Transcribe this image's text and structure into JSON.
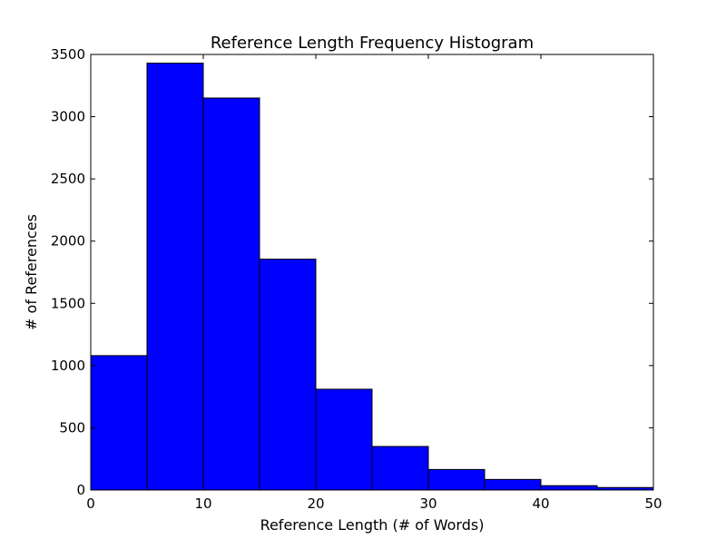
{
  "chart_data": {
    "type": "bar",
    "title": "Reference Length Frequency Histogram",
    "xlabel": "Reference Length (# of Words)",
    "ylabel": "# of References",
    "xlim": [
      0,
      50
    ],
    "ylim": [
      0,
      3500
    ],
    "x_ticks": [
      0,
      10,
      20,
      30,
      40,
      50
    ],
    "y_ticks": [
      0,
      500,
      1000,
      1500,
      2000,
      2500,
      3000,
      3500
    ],
    "grid": false,
    "bar_color": "#0000ff",
    "edge_color": "#000000",
    "bins": [
      {
        "x0": 0,
        "x1": 5,
        "value": 1080
      },
      {
        "x0": 5,
        "x1": 10,
        "value": 3430
      },
      {
        "x0": 10,
        "x1": 15,
        "value": 3150
      },
      {
        "x0": 15,
        "x1": 20,
        "value": 1855
      },
      {
        "x0": 20,
        "x1": 25,
        "value": 810
      },
      {
        "x0": 25,
        "x1": 30,
        "value": 350
      },
      {
        "x0": 30,
        "x1": 35,
        "value": 165
      },
      {
        "x0": 35,
        "x1": 40,
        "value": 85
      },
      {
        "x0": 40,
        "x1": 45,
        "value": 35
      },
      {
        "x0": 45,
        "x1": 50,
        "value": 20
      }
    ]
  }
}
